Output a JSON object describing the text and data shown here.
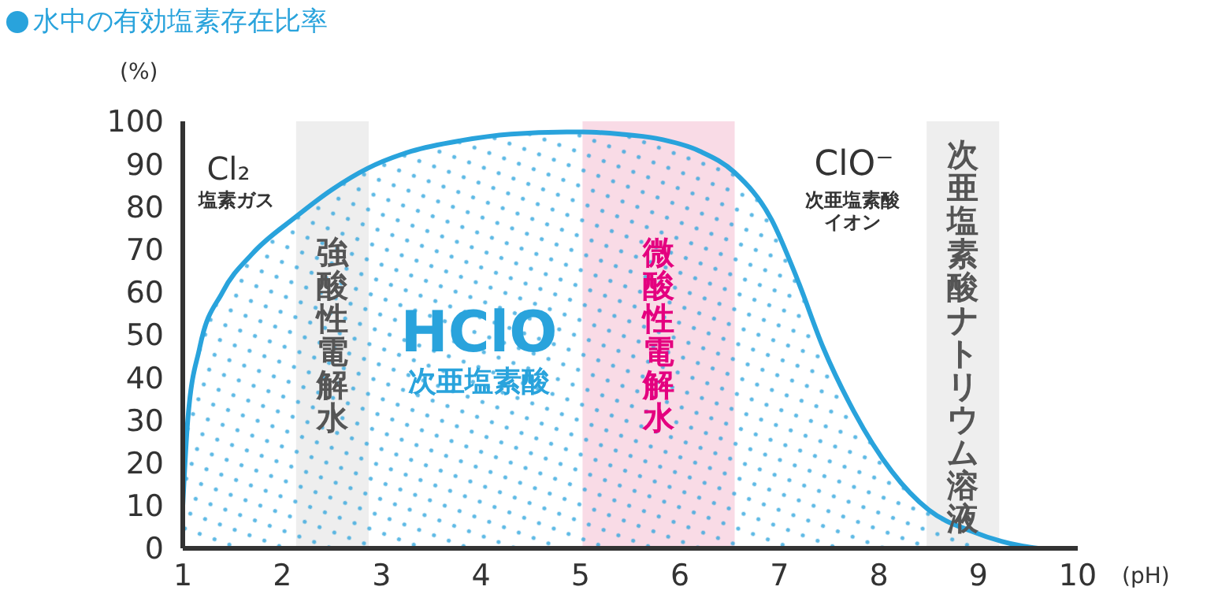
{
  "chart_data": {
    "type": "area",
    "title": "水中の有効塩素存在比率",
    "xlabel": "(pH)",
    "ylabel": "(%)",
    "x": [
      1,
      1.05,
      1.17,
      1.4,
      1.7,
      2.13,
      2.5,
      2.86,
      3.3,
      3.8,
      4.3,
      4.86,
      5.02,
      5.4,
      5.76,
      6.2,
      6.55,
      6.92,
      7.18,
      7.44,
      7.75,
      8.13,
      8.5,
      8.93,
      9.45,
      9.6
    ],
    "series": [
      {
        "color": "#29a3dc",
        "values": [
          10,
          30,
          47,
          60,
          69,
          77.5,
          84,
          89,
          93,
          95.5,
          97,
          97.5,
          97.5,
          97,
          96,
          93,
          88,
          77,
          63,
          47,
          32,
          18,
          9,
          4,
          0.5,
          0
        ]
      }
    ],
    "xlim": [
      1,
      10
    ],
    "xticks": [
      1,
      2,
      3,
      4,
      5,
      6,
      7,
      8,
      9,
      10
    ],
    "ylim": [
      0,
      100
    ],
    "yticks": [
      0,
      10,
      20,
      30,
      40,
      50,
      60,
      70,
      80,
      90,
      100
    ],
    "grid": false,
    "legend": false,
    "bands": [
      {
        "axis": "x",
        "from": 2.14,
        "to": 2.87,
        "label": "強酸性電解水",
        "color": "#eeeeee"
      },
      {
        "axis": "x",
        "from": 5.02,
        "to": 6.55,
        "label": "微酸性電解水",
        "color": "#f9dbe6"
      },
      {
        "axis": "x",
        "from": 8.48,
        "to": 9.21,
        "label": "次亜塩素酸ナトリウム溶液",
        "color": "#eeeeee"
      }
    ],
    "annotations": [
      "Cl₂",
      "塩素ガス",
      "HClO",
      "次亜塩素酸",
      "ClO⁻",
      "次亜塩素酸イオン"
    ]
  }
}
